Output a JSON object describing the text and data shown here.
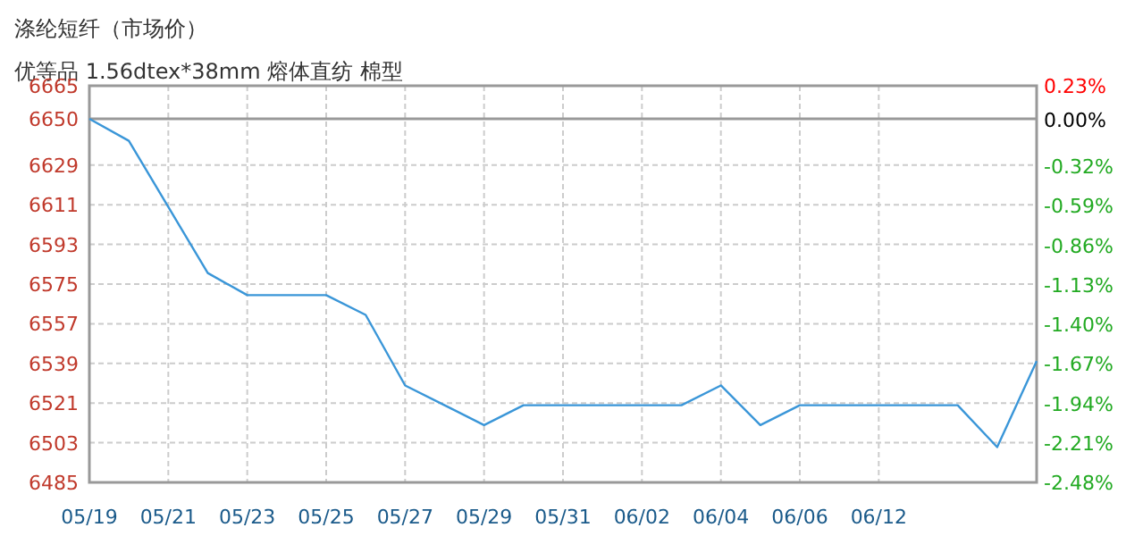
{
  "chart_data": {
    "type": "line",
    "title": "涤纶短纤（市场价）",
    "subtitle": "优等品 1.56dtex*38mm 熔体直纺 棉型",
    "categories": [
      "05/19",
      null,
      "05/21",
      null,
      "05/23",
      null,
      "05/25",
      null,
      "05/27",
      null,
      "05/29",
      null,
      "05/31",
      null,
      "06/02",
      null,
      "06/04",
      null,
      "06/06",
      null,
      "06/12",
      null,
      null,
      null,
      null
    ],
    "series": [
      {
        "color": "#3a96d8",
        "values": [
          6650,
          6640,
          6610,
          6580,
          6570,
          6570,
          6570,
          6561,
          6529,
          6520,
          6511,
          6520,
          6520,
          6520,
          6520,
          6520,
          6529,
          6511,
          6520,
          6520,
          6520,
          6520,
          6520,
          6501,
          6540
        ]
      }
    ],
    "ylim": [
      6485,
      6665
    ],
    "yticks": [
      6485,
      6503,
      6521,
      6539,
      6557,
      6575,
      6593,
      6611,
      6629,
      6650,
      6665
    ],
    "y2lim": [
      -2.48,
      0.23
    ],
    "y2ticks": [
      {
        "value": -2.48,
        "label": "-2.48%"
      },
      {
        "value": -2.21,
        "label": "-2.21%"
      },
      {
        "value": -1.94,
        "label": "-1.94%"
      },
      {
        "value": -1.67,
        "label": "-1.67%"
      },
      {
        "value": -1.4,
        "label": "-1.40%"
      },
      {
        "value": -1.13,
        "label": "-1.13%"
      },
      {
        "value": -0.86,
        "label": "-0.86%"
      },
      {
        "value": -0.59,
        "label": "-0.59%"
      },
      {
        "value": -0.32,
        "label": "-0.32%"
      },
      {
        "value": 0,
        "label": "0.00%"
      },
      {
        "value": 0.23,
        "label": "0.23%"
      }
    ],
    "ref_lines": [
      {
        "axis": "y",
        "value": 6650,
        "color": "#999999"
      }
    ],
    "grid": true,
    "marker": "none",
    "line_style": "solid"
  }
}
